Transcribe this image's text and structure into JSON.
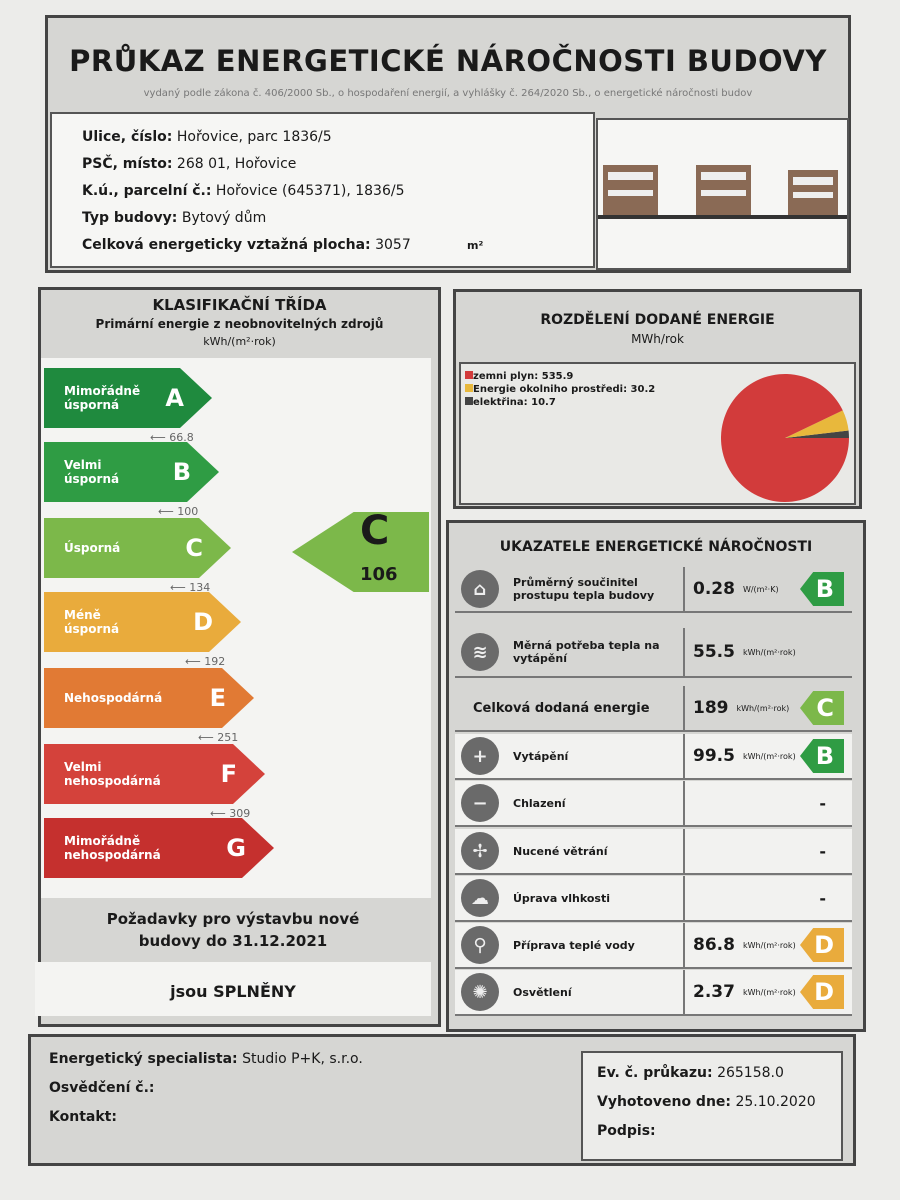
{
  "header": {
    "title": "PRŮKAZ ENERGETICKÉ NÁROČNOSTI BUDOVY",
    "subtitle": "vydaný podle zákona č. 406/2000 Sb., o hospodaření energií, a vyhlášky č. 264/2020 Sb., o energetické náročnosti budov"
  },
  "address": {
    "street_label": "Ulice, číslo:",
    "street": "Hořovice, parc 1836/5",
    "psc_label": "PSČ, místo:",
    "psc": "268 01, Hořovice",
    "ku_label": "K.ú., parcelní č.:",
    "ku": "Hořovice (645371), 1836/5",
    "type_label": "Typ budovy:",
    "type": "Bytový dům",
    "area_label": "Celková energeticky vztažná plocha:",
    "area": "3057",
    "area_unit": "m²"
  },
  "classification": {
    "title": "KLASIFIKAČNÍ TŘÍDA",
    "subtitle": "Primární energie z neobnovitelných zdrojů",
    "unit": "kWh/(m²·rok)",
    "classes": [
      {
        "label": "Mimořádně úsporná",
        "letter": "A",
        "color": "#1f8a3e",
        "threshold": "66.8"
      },
      {
        "label": "Velmi úsporná",
        "letter": "B",
        "color": "#2f9c44",
        "threshold": "100"
      },
      {
        "label": "Úsporná",
        "letter": "C",
        "color": "#7cb84a",
        "threshold": "134"
      },
      {
        "label": "Méně úsporná",
        "letter": "D",
        "color": "#e9ab3c",
        "threshold": "192"
      },
      {
        "label": "Nehospodárná",
        "letter": "E",
        "color": "#e17a34",
        "threshold": "251"
      },
      {
        "label": "Velmi nehospodárná",
        "letter": "F",
        "color": "#d4423b",
        "threshold": "309"
      },
      {
        "label": "Mimořádně nehospodárná",
        "letter": "G",
        "color": "#c5302e"
      }
    ],
    "result_class": "C",
    "result_value": "106",
    "requirements_title": "Požadavky pro výstavbu nové budovy do 31.12.2021",
    "requirements_status": "jsou SPLNĚNY"
  },
  "distribution": {
    "title": "ROZDĚLENÍ DODANÉ ENERGIE",
    "unit": "MWh/rok",
    "chart_data": {
      "type": "pie",
      "slices": [
        {
          "name": "zemni plyn",
          "value": 535.9,
          "label": "zemni plyn: 535.9",
          "color": "#d23b3b"
        },
        {
          "name": "Energie okolniho prostředi",
          "value": 30.2,
          "label": "Energie okolniho prostředi: 30.2",
          "color": "#e8b83c"
        },
        {
          "name": "elektřina",
          "value": 10.7,
          "label": "elektřina: 10.7",
          "color": "#444444"
        }
      ]
    }
  },
  "indicators": {
    "title": "UKAZATELE ENERGETICKÉ NÁROČNOSTI",
    "rows": [
      {
        "label": "Průměrný součinitel prostupu tepla budovy",
        "icon": "house-icon",
        "glyph": "⌂",
        "value": "0.28",
        "unit": "W/(m²·K)",
        "class": "B",
        "color": "#2f9c44"
      },
      {
        "label": "Měrná potřeba tepla na vytápění",
        "icon": "heat-thermometer-icon",
        "glyph": "≋",
        "value": "55.5",
        "unit": "kWh/(m²·rok)"
      },
      {
        "label": "Celková dodaná energie",
        "value": "189",
        "unit": "kWh/(m²·rok)",
        "class": "C",
        "color": "#7cb84a"
      },
      {
        "label": "Vytápění",
        "icon": "heating-thermometer-icon",
        "glyph": "+",
        "value": "99.5",
        "unit": "kWh/(m²·rok)",
        "class": "B",
        "color": "#2f9c44"
      },
      {
        "label": "Chlazení",
        "icon": "cooling-thermometer-icon",
        "glyph": "−",
        "value": "-"
      },
      {
        "label": "Nucené větrání",
        "icon": "fan-icon",
        "glyph": "✢",
        "value": "-"
      },
      {
        "label": "Úprava vlhkosti",
        "icon": "humidity-icon",
        "glyph": "☁",
        "value": "-"
      },
      {
        "label": "Příprava teplé vody",
        "icon": "faucet-icon",
        "glyph": "⚲",
        "value": "86.8",
        "unit": "kWh/(m²·rok)",
        "class": "D",
        "color": "#e9ab3c"
      },
      {
        "label": "Osvětlení",
        "icon": "light-bulb-icon",
        "glyph": "✺",
        "value": "2.37",
        "unit": "kWh/(m²·rok)",
        "class": "D",
        "color": "#e9ab3c"
      }
    ]
  },
  "footer": {
    "specialist_label": "Energetický specialista:",
    "specialist": "Studio P+K, s.r.o.",
    "cert_label": "Osvědčení č.:",
    "contact_label": "Kontakt:",
    "ev_label": "Ev. č. průkazu:",
    "ev": "265158.0",
    "date_label": "Vyhotoveno dne:",
    "date": "25.10.2020",
    "sign_label": "Podpis:"
  }
}
